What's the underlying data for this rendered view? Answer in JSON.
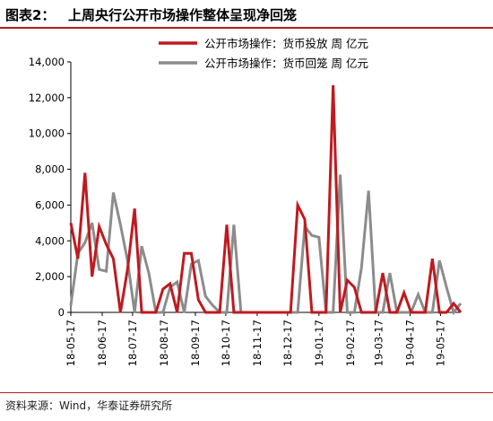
{
  "header": {
    "figure_label": "图表2：",
    "title": "上周央行公开市场操作整体呈现净回笼"
  },
  "footer": {
    "source": "资料来源：Wind，华泰证券研究所"
  },
  "colors": {
    "injection": "#c0191f",
    "withdrawal": "#8c8c8c",
    "header_rule": "#b31b1b"
  },
  "chart_data": {
    "type": "line",
    "legend_position": "top-right",
    "grid": false,
    "ylim": [
      0,
      14000
    ],
    "y_ticks": [
      "0",
      "2,000",
      "4,000",
      "6,000",
      "8,000",
      "10,000",
      "12,000",
      "14,000"
    ],
    "y_tick_values": [
      0,
      2000,
      4000,
      6000,
      8000,
      10000,
      12000,
      14000
    ],
    "x_start": "2018-05-17",
    "x_step_weeks": 1,
    "x_ticks": [
      "18-05-17",
      "18-06-17",
      "18-07-17",
      "18-08-17",
      "18-09-17",
      "18-10-17",
      "18-11-17",
      "18-12-17",
      "19-01-17",
      "19-02-17",
      "19-03-17",
      "19-04-17",
      "19-05-17"
    ],
    "x_tick_dates": [
      "2018-05-17",
      "2018-06-17",
      "2018-07-17",
      "2018-08-17",
      "2018-09-17",
      "2018-10-17",
      "2018-11-17",
      "2018-12-17",
      "2019-01-17",
      "2019-02-17",
      "2019-03-17",
      "2019-04-17",
      "2019-05-17"
    ],
    "series": [
      {
        "name": "公开市场操作：货币投放 周 亿元",
        "color": "#c0191f",
        "values": [
          5000,
          3000,
          7800,
          2000,
          4800,
          3800,
          3000,
          0,
          2400,
          5800,
          0,
          0,
          0,
          1300,
          1600,
          0,
          3300,
          3300,
          700,
          0,
          0,
          0,
          4900,
          0,
          0,
          0,
          0,
          0,
          0,
          0,
          0,
          0,
          6000,
          5200,
          0,
          0,
          0,
          12700,
          0,
          1800,
          1400,
          0,
          0,
          0,
          2200,
          0,
          0,
          1100,
          0,
          0,
          0,
          3000,
          0,
          0,
          500,
          0
        ]
      },
      {
        "name": "公开市场操作：货币回笼 周 亿元",
        "color": "#8c8c8c",
        "values": [
          400,
          3300,
          3900,
          5000,
          2400,
          2300,
          6700,
          4900,
          2900,
          0,
          3700,
          2200,
          0,
          0,
          1400,
          1700,
          0,
          2700,
          2900,
          900,
          400,
          0,
          0,
          4900,
          0,
          0,
          0,
          0,
          0,
          0,
          0,
          0,
          0,
          4800,
          4300,
          4200,
          0,
          0,
          7700,
          0,
          0,
          2500,
          6800,
          0,
          0,
          2200,
          0,
          0,
          0,
          1000,
          0,
          0,
          2900,
          1400,
          0,
          500
        ]
      }
    ]
  }
}
